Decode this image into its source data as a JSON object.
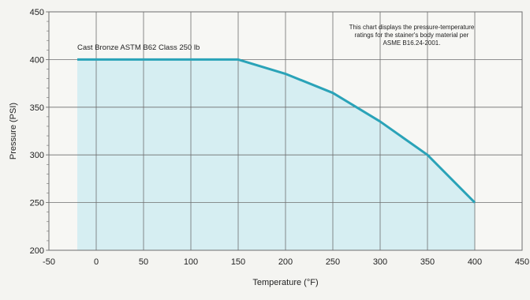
{
  "chart_data": {
    "type": "area",
    "title": "",
    "xlabel": "Temperature (°F)",
    "ylabel": "Pressure (PSI)",
    "xlim": [
      -50,
      450
    ],
    "ylim": [
      200,
      450
    ],
    "x_ticks": [
      "-50",
      "0",
      "50",
      "100",
      "150",
      "200",
      "250",
      "300",
      "350",
      "400",
      "450"
    ],
    "y_ticks": [
      "200",
      "250",
      "300",
      "350",
      "400",
      "450"
    ],
    "grid": true,
    "series": [
      {
        "name": "Cast Bronze ASTM B62 Class 250 lb",
        "x": [
          -20,
          150,
          200,
          250,
          300,
          350,
          400
        ],
        "y": [
          400,
          400,
          385,
          365,
          335,
          300,
          250
        ]
      }
    ],
    "annotation": [
      "This chart displays the pressure-temperature",
      "ratings  for the stainer's body material per",
      "ASME B16.24-2001."
    ],
    "colors": {
      "line": "#2aa3b8",
      "fill": "#d6eef2",
      "grid": "#6e6e6e",
      "background": "#f4f4f1"
    }
  }
}
